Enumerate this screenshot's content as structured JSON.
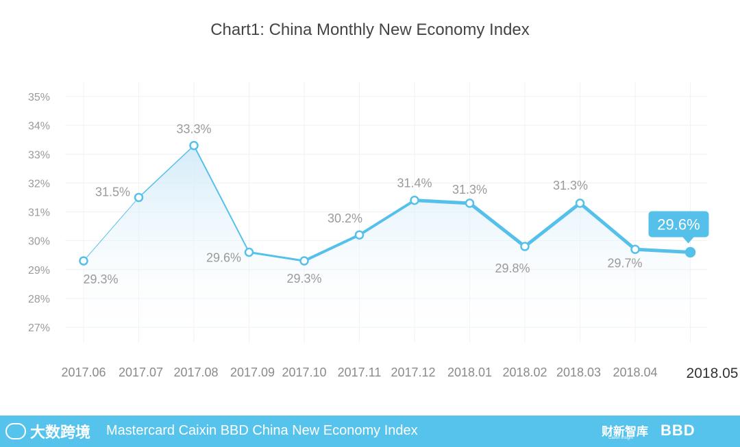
{
  "chart_data": {
    "type": "line",
    "title": "Chart1: China Monthly New Economy Index",
    "xlabel": "",
    "ylabel": "",
    "categories": [
      "2017.06",
      "2017.07",
      "2017.08",
      "2017.09",
      "2017.10",
      "2017.11",
      "2017.12",
      "2018.01",
      "2018.02",
      "2018.03",
      "2018.04",
      "2018.05"
    ],
    "series": [
      {
        "values": [
          29.3,
          31.5,
          33.3,
          29.6,
          29.3,
          30.2,
          31.4,
          31.3,
          29.8,
          31.3,
          29.7,
          29.6
        ],
        "labels": [
          "29.3%",
          "31.5%",
          "33.3%",
          "29.6%",
          "29.3%",
          "30.2%",
          "31.4%",
          "31.3%",
          "29.8%",
          "31.3%",
          "29.7%",
          "29.6%"
        ]
      }
    ],
    "ylim": [
      27,
      35
    ],
    "yticks": [
      "27%",
      "28%",
      "29%",
      "30%",
      "31%",
      "32%",
      "33%",
      "34%",
      "35%"
    ],
    "grid": true,
    "legend": "none",
    "colors": {
      "line": "#55c0ea",
      "area": "#d8eefa"
    }
  },
  "footer": {
    "left_logo": "大数跨境",
    "title": "Mastercard Caixin BBD China New Economy Index",
    "caixin_logo": "财新智库",
    "caixin_sub": "Caixin Insight",
    "bbd_logo": "BBD"
  }
}
